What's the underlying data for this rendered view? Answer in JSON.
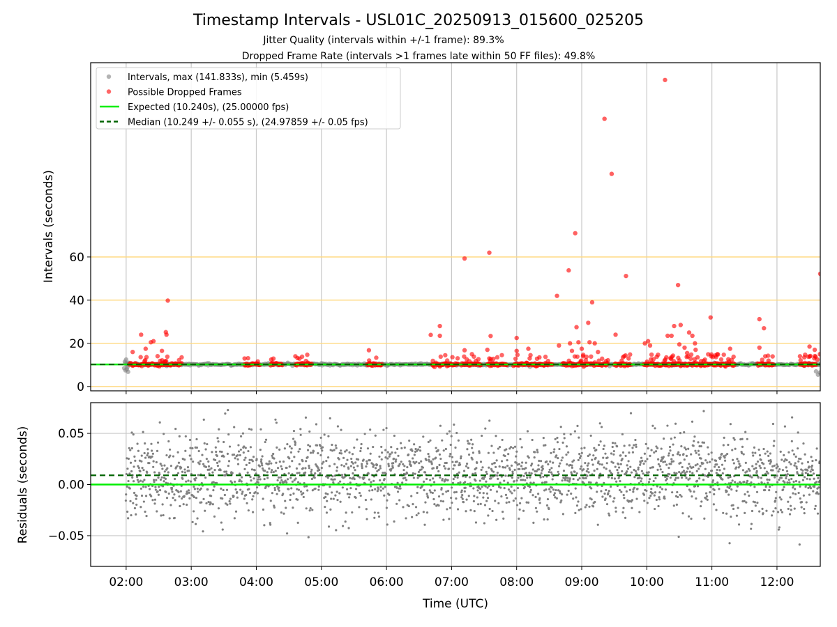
{
  "chart_data": {
    "type": "scatter",
    "title": "Timestamp Intervals - USL01C_20250913_015600_025205",
    "subtitle_1": "Jitter Quality (intervals within +/-1 frame): 89.3%",
    "subtitle_2": "Dropped Frame Rate (intervals >1 frames late within 50 FF files): 49.8%",
    "xlabel": "Time (UTC)",
    "x_ticks": [
      "02:00",
      "03:00",
      "04:00",
      "05:00",
      "06:00",
      "07:00",
      "08:00",
      "09:00",
      "10:00",
      "11:00",
      "12:00"
    ],
    "x_tick_hours": [
      2,
      3,
      4,
      5,
      6,
      7,
      8,
      9,
      10,
      11,
      12
    ],
    "xlim_hours": [
      1.455,
      12.665
    ],
    "top_panel": {
      "ylabel": "Intervals (seconds)",
      "ylim": [
        -2,
        150
      ],
      "y_ticks": [
        0,
        20,
        40,
        60
      ],
      "reference_lines": [
        0,
        20,
        40,
        60
      ],
      "reference_line_color": "#ffd980",
      "legend": {
        "position": "upper-left",
        "entries": [
          {
            "label": "Intervals, max (141.833s), min (5.459s)",
            "kind": "marker",
            "color": "#808080"
          },
          {
            "label": "Possible Dropped Frames",
            "kind": "marker",
            "color": "#ff0000"
          },
          {
            "label": "Expected (10.240s), (25.00000 fps)",
            "kind": "solid-line",
            "color": "#00ee00"
          },
          {
            "label": "Median (10.249 +/- 0.055 s), (24.97859 +/- 0.05 fps)",
            "kind": "dashed-line",
            "color": "#006400"
          }
        ]
      },
      "expected_value": 10.24,
      "median_value": 10.249,
      "normal_interval_color": "#808080",
      "dropped_frame_color": "#ff0000",
      "dropped_frame_outliers": [
        [
          2.23,
          24
        ],
        [
          2.38,
          20.5
        ],
        [
          2.42,
          21
        ],
        [
          2.55,
          16.5
        ],
        [
          2.61,
          25.2
        ],
        [
          2.62,
          24
        ],
        [
          2.64,
          39.8
        ],
        [
          2.1,
          16
        ],
        [
          2.3,
          17.5
        ],
        [
          3.82,
          13
        ],
        [
          4.23,
          12.5
        ],
        [
          4.6,
          14
        ],
        [
          5.73,
          16.8
        ],
        [
          6.68,
          23.9
        ],
        [
          6.82,
          28
        ],
        [
          6.82,
          23.5
        ],
        [
          7.2,
          59.3
        ],
        [
          7.2,
          16.8
        ],
        [
          7.55,
          17
        ],
        [
          7.58,
          62
        ],
        [
          7.6,
          23.4
        ],
        [
          7.58,
          13
        ],
        [
          8.0,
          22.5
        ],
        [
          8.0,
          16.5
        ],
        [
          8.18,
          17.5
        ],
        [
          8.2,
          13
        ],
        [
          8.35,
          13.5
        ],
        [
          8.62,
          42
        ],
        [
          8.65,
          19
        ],
        [
          8.8,
          53.8
        ],
        [
          8.82,
          20
        ],
        [
          8.85,
          16.5
        ],
        [
          8.9,
          71
        ],
        [
          8.92,
          27.5
        ],
        [
          8.95,
          20.5
        ],
        [
          9.0,
          17.5
        ],
        [
          9.02,
          14
        ],
        [
          9.1,
          29.5
        ],
        [
          9.12,
          20.5
        ],
        [
          9.16,
          39
        ],
        [
          9.2,
          20
        ],
        [
          9.25,
          16
        ],
        [
          9.35,
          124
        ],
        [
          9.46,
          98.5
        ],
        [
          9.52,
          24
        ],
        [
          9.68,
          51.2
        ],
        [
          9.72,
          13
        ],
        [
          9.97,
          20
        ],
        [
          10.02,
          21
        ],
        [
          10.05,
          19
        ],
        [
          10.28,
          142
        ],
        [
          10.32,
          23.5
        ],
        [
          10.3,
          13.5
        ],
        [
          10.38,
          23.5
        ],
        [
          10.42,
          28
        ],
        [
          10.48,
          47
        ],
        [
          10.5,
          19.5
        ],
        [
          10.52,
          28.5
        ],
        [
          10.58,
          18
        ],
        [
          10.62,
          15.5
        ],
        [
          10.65,
          25
        ],
        [
          10.7,
          23.5
        ],
        [
          10.74,
          20
        ],
        [
          10.75,
          17
        ],
        [
          10.78,
          13.5
        ],
        [
          10.98,
          32
        ],
        [
          10.99,
          14
        ],
        [
          11.28,
          17.5
        ],
        [
          11.73,
          31.2
        ],
        [
          11.73,
          18
        ],
        [
          11.8,
          27
        ],
        [
          11.82,
          14
        ],
        [
          11.87,
          12
        ],
        [
          12.42,
          13.5
        ],
        [
          12.5,
          18.5
        ],
        [
          12.58,
          17
        ],
        [
          12.62,
          12.5
        ],
        [
          12.66,
          15
        ],
        [
          12.665,
          52.2
        ]
      ],
      "dropped_frame_clusters_at_baseline_hours": [
        [
          2.05,
          2.85
        ],
        [
          3.82,
          4.05
        ],
        [
          4.22,
          4.4
        ],
        [
          4.6,
          4.85
        ],
        [
          5.7,
          5.93
        ],
        [
          6.7,
          7.1
        ],
        [
          7.15,
          7.45
        ],
        [
          7.55,
          7.85
        ],
        [
          7.95,
          8.55
        ],
        [
          8.7,
          9.4
        ],
        [
          9.5,
          9.75
        ],
        [
          9.95,
          11.35
        ],
        [
          11.7,
          11.95
        ],
        [
          12.35,
          12.6
        ]
      ]
    },
    "bottom_panel": {
      "ylabel": "Residuals (seconds)",
      "ylim": [
        -0.08,
        0.08
      ],
      "y_ticks": [
        "0.05",
        "0.00",
        "−0.05"
      ],
      "y_tick_values": [
        0.05,
        0.0,
        -0.05
      ],
      "expected_residual": 0.0,
      "median_residual": 0.009,
      "residual_spread_sd": 0.02,
      "residual_point_color": "#808080"
    }
  }
}
